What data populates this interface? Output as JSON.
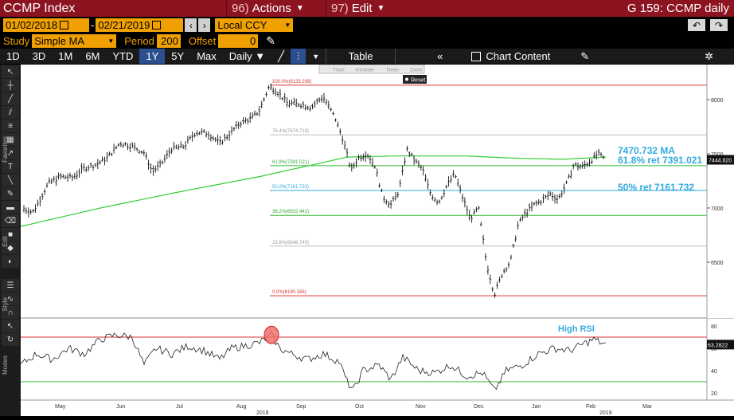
{
  "header": {
    "title": "CCMP Index",
    "actions_num": "96)",
    "actions": "Actions",
    "edit_num": "97)",
    "edit": "Edit",
    "right": "G 159: CCMP daily"
  },
  "range": {
    "start": "01/02/2018",
    "sep": "-",
    "end": "02/21/2019",
    "ccy": "Local CCY"
  },
  "study": {
    "label": "Study",
    "value": "Simple MA",
    "period_label": "Period",
    "period": "200",
    "offset_label": "Offset",
    "offset": "0"
  },
  "toolbar": {
    "periods": [
      "1D",
      "3D",
      "1M",
      "6M",
      "YTD",
      "1Y",
      "5Y",
      "Max"
    ],
    "selected": "1Y",
    "freq": "Daily ▼",
    "table": "Table",
    "chart_content": "Chart Content"
  },
  "chart_menu": {
    "track": "Track",
    "annotate": "Annotate",
    "news": "News",
    "zoom": "Zoom",
    "reset": "Reset"
  },
  "left_labels": {
    "favorites": "Favorites",
    "edit": "Edit",
    "style": "Style",
    "modes": "Modes"
  },
  "price_axis": {
    "ticks": [
      "8000",
      "7500",
      "7000",
      "6500"
    ],
    "current": "7444.820"
  },
  "rsi_axis": {
    "ticks": [
      "80",
      "60",
      "40",
      "20"
    ],
    "current": "63.2822"
  },
  "months": [
    "May",
    "Jun",
    "Jul",
    "Aug",
    "Sep",
    "Oct",
    "Nov",
    "Dec",
    "Jan",
    "Feb",
    "Mar"
  ],
  "years": [
    "2018",
    "2019"
  ],
  "fib": [
    "100.0%(8133.298)",
    "76.4%(7674.719)",
    "61.8%(7391.021)",
    "50.0%(7161.732)",
    "38.2%(6932.442)",
    "23.6%(6648.745)",
    "0.0%(6190.166)"
  ],
  "annotations": {
    "ma": "7470.732 MA",
    "ret618": "61.8% ret 7391.021",
    "ret50": "50% ret 7161.732",
    "high_rsi": "High RSI"
  },
  "colors": {
    "maroon": "#8c1421",
    "amber": "#f0a000",
    "ma_green": "#33cc33",
    "fib_red": "#d33",
    "fib_blue": "#33aadd"
  }
}
